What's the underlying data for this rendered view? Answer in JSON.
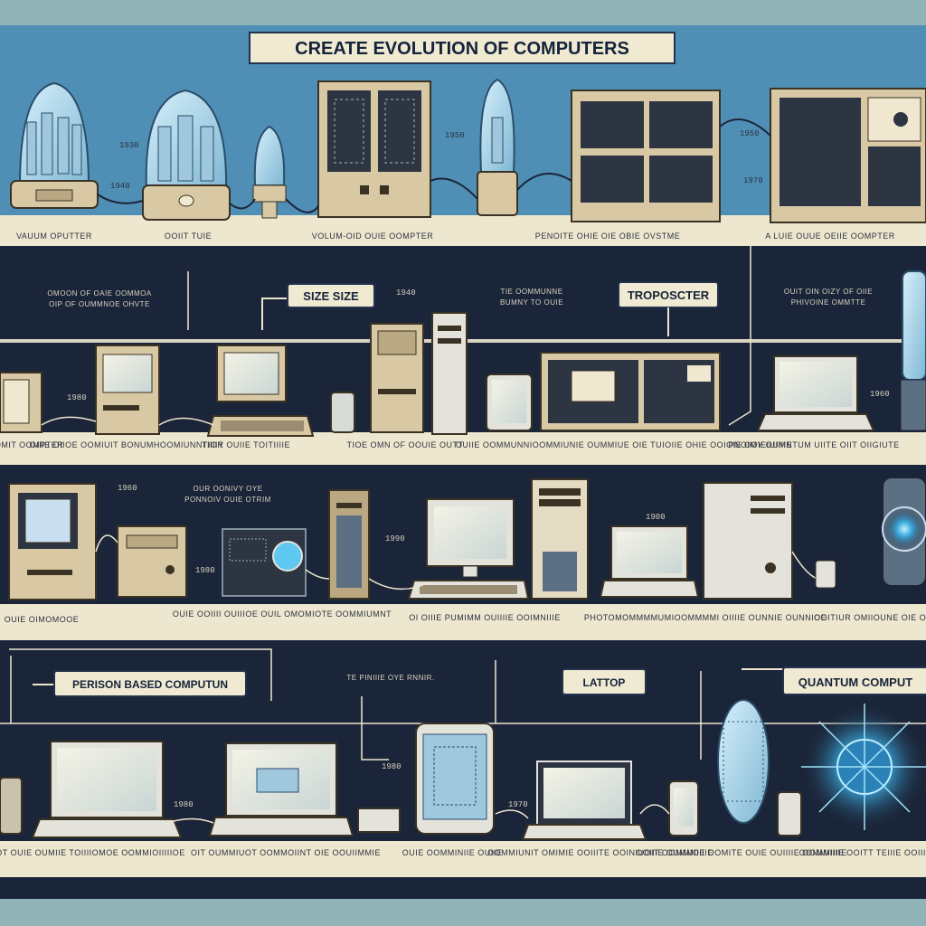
{
  "title": "CREATE EVOLUTION OF COMPUTERS",
  "callouts": {
    "size": "SIZE SIZE",
    "transistor": "TROPOSCTER",
    "person": "PERISON BASED COMPUTUN",
    "laptop": "LATTOP",
    "quantum": "QUANTUM COMPUT"
  },
  "notes": {
    "row2_left": [
      "OMOON OF OAIE OOMMOA",
      "OIP OF OUMMNOE OHVTE"
    ],
    "row2_mid": [
      "TIE OOMMUNNE",
      "BUMNY TO OUIE"
    ],
    "row2_right": [
      "OUIT OIN OIZY OF OIIE",
      "PHIVOINE OMMTTE"
    ],
    "row3_top": [
      "OUR OONIVY OYE",
      "PONNOIV OUIE OTRIM"
    ],
    "row4_top": "TE PINIIIE OYE RNNIR."
  },
  "row1": {
    "captions": [
      "VAUUM OPUTTER",
      "OOIIT TUIE",
      "VOLUM-OID OUIE OOMPTER",
      "PENOITE OHIE OIE OBIE OVSTME",
      "A LUIE OUUE OEIIE OOMPTER"
    ],
    "tags": [
      "1930",
      "1940",
      "1950",
      "1950",
      "1970"
    ]
  },
  "row2": {
    "captions": [
      "OTEOMIT OOMPTER",
      "OIIIE OIIOE OOMIUIT BONUMHOOMIUNNTIOR",
      "TIIIIY OUIIE TOITIIIIE",
      "TIOE OMN OF OOUIE OUTT",
      "OUIIE OOMMUNNIOOMMIUNIE OUMMIUE OIE TUIOIIE OHIE OOIOIE OOIEIUIIIIE",
      "PNOIMY OUMNTUM UIITE OIIT OIIGIUTE"
    ],
    "tags": [
      "1940",
      "1980",
      "1960"
    ]
  },
  "row3": {
    "captions": [
      "OUIE OIMOMOOE",
      "OUIE OOIIII OUIIIOE OUIL OMOMIOTE OOMMIUMNT",
      "OI OIIIE PUMIMM OUIIIIE OOIMNIIIE",
      "PHOTOMOMMMMUMIOOMMMMI OIIIIE OUNNIE OUNNIOE",
      "OOITIUR OMIIOUNE OIE OIIIE"
    ],
    "tags": [
      "1960",
      "1980",
      "1990",
      "1900"
    ]
  },
  "row4": {
    "captions": [
      "OT OUIE OUMIIE TOIIIIOMOE OOMMIOIIIIIOE",
      "OIT OUMMIUOT OOMMOIINT OIE OOUIIMMIE",
      "OUIE OOMMINIIE OUIIE",
      "OOMMIUNIT OMIMIE OOIIITE OOINIUOIT OOMMIOIIIE",
      "OOIIIE OUMMIIE OOMITE OUIE OUIIIIE OOMMIIIIE",
      "OOMMIIIIE OOITT TEIIIE OOIIIIIE"
    ],
    "tags": [
      "1980",
      "1980",
      "1970"
    ]
  },
  "colors": {
    "row1_bg": "#4f8fb6",
    "dark_band": "#1b2539",
    "shelf": "#eee7cf",
    "beige": "#d9c8a4",
    "title_bg": "#f0ead2",
    "frame": "#8fb3b7",
    "glow": "#5ec8f0"
  }
}
